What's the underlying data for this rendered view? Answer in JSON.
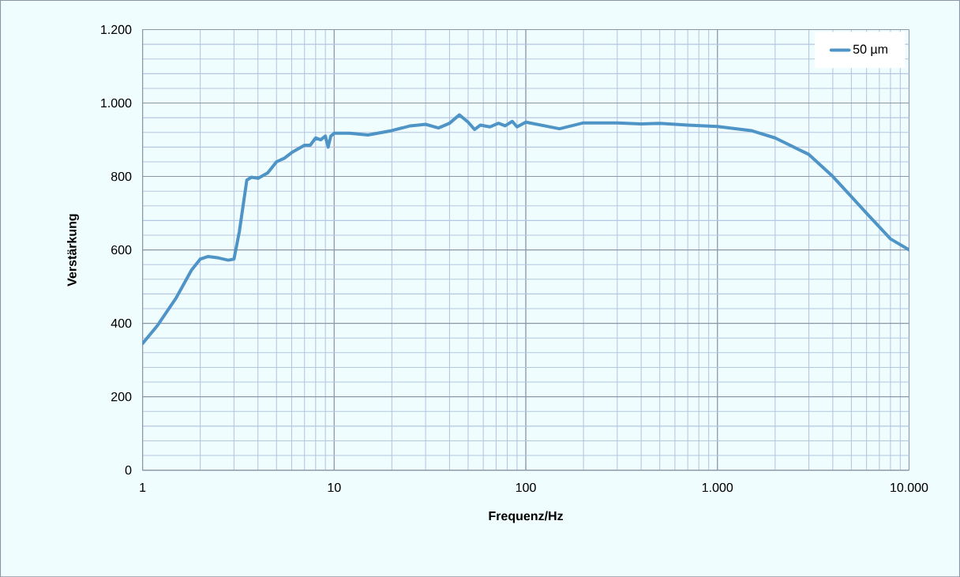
{
  "chart_data": {
    "type": "line",
    "xlabel": "Frequenz/Hz",
    "ylabel": "Verstärkung",
    "x": [
      1,
      1.2,
      1.5,
      1.8,
      2,
      2.2,
      2.5,
      2.8,
      3,
      3.2,
      3.5,
      3.7,
      4,
      4.5,
      5,
      5.5,
      6,
      7,
      7.5,
      8,
      8.5,
      9,
      9.3,
      9.6,
      10,
      12,
      15,
      20,
      25,
      30,
      35,
      40,
      45,
      50,
      54,
      58,
      65,
      72,
      78,
      85,
      90,
      100,
      150,
      200,
      300,
      400,
      500,
      700,
      1000,
      1500,
      2000,
      3000,
      4000,
      5000,
      6000,
      8000,
      10000
    ],
    "series": [
      {
        "name": "50 µm",
        "color": "#4f94c6",
        "values": [
          345,
          395,
          470,
          545,
          575,
          582,
          578,
          572,
          575,
          650,
          790,
          798,
          795,
          810,
          840,
          850,
          865,
          885,
          885,
          905,
          900,
          910,
          880,
          910,
          918,
          918,
          913,
          925,
          938,
          942,
          932,
          945,
          968,
          948,
          928,
          940,
          935,
          945,
          938,
          950,
          935,
          948,
          930,
          946,
          946,
          943,
          945,
          940,
          936,
          925,
          905,
          860,
          800,
          745,
          700,
          630,
          600
        ]
      }
    ],
    "xlim": [
      1,
      10000
    ],
    "ylim": [
      0,
      1200
    ],
    "xticks": [
      1,
      10,
      100,
      {
        "value": 1000,
        "label": "1.000"
      },
      {
        "value": 10000,
        "label": "10.000"
      }
    ],
    "yticks": [
      0,
      200,
      400,
      600,
      800,
      {
        "value": 1000,
        "label": "1.000"
      },
      {
        "value": 1200,
        "label": "1.200"
      }
    ],
    "log": "x",
    "grid": true,
    "legend": "top right",
    "marker": "none",
    "line_style": "solid"
  }
}
